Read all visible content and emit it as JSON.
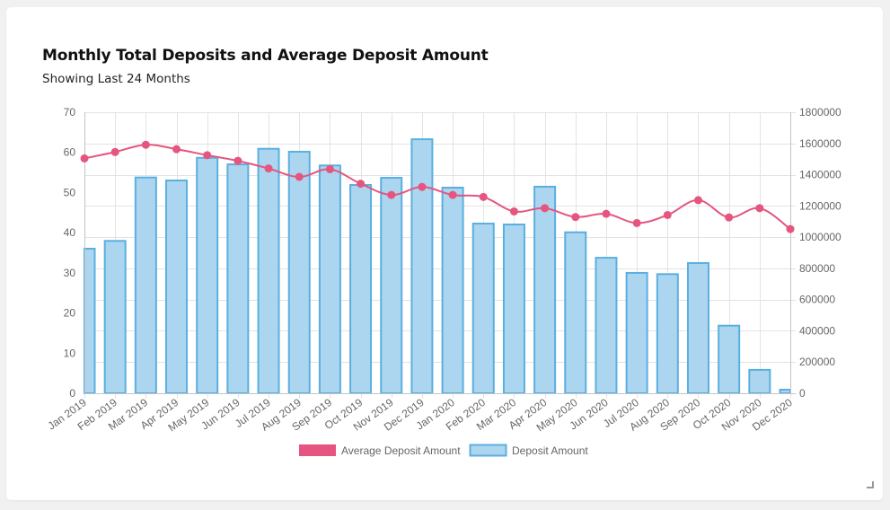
{
  "header": {
    "title": "Monthly Total Deposits and Average Deposit Amount",
    "subtitle": "Showing Last 24 Months"
  },
  "colors": {
    "line": "#e5557f",
    "bar_fill": "#acd6ef",
    "bar_border": "#5aafe0",
    "grid": "#e3e3e3",
    "axis": "#c4c4c4",
    "tick_text": "#666666"
  },
  "chart_data": {
    "type": "bar",
    "title": "Monthly Total Deposits and Average Deposit Amount",
    "subtitle": "Showing Last 24 Months",
    "categories": [
      "Jan 2019",
      "Feb 2019",
      "Mar 2019",
      "Apr 2019",
      "May 2019",
      "Jun 2019",
      "Jul 2019",
      "Aug 2019",
      "Sep 2019",
      "Oct 2019",
      "Nov 2019",
      "Dec 2019",
      "Jan 2020",
      "Feb 2020",
      "Mar 2020",
      "Apr 2020",
      "May 2020",
      "Jun 2020",
      "Jul 2020",
      "Aug 2020",
      "Sep 2020",
      "Oct 2020",
      "Nov 2020",
      "Dec 2020"
    ],
    "series": [
      {
        "name": "Average Deposit Amount",
        "type": "line",
        "axis": "left",
        "values": [
          58.5,
          60.1,
          61.9,
          60.8,
          59.3,
          57.9,
          56.0,
          53.9,
          55.8,
          52.2,
          49.4,
          51.4,
          49.4,
          48.9,
          45.3,
          46.1,
          43.9,
          44.7,
          42.4,
          44.4,
          48.1,
          43.8,
          46.1,
          40.9
        ]
      },
      {
        "name": "Deposit Amount",
        "type": "bar",
        "axis": "right",
        "values": [
          926000,
          976000,
          1382000,
          1363000,
          1508000,
          1466000,
          1566000,
          1547000,
          1459000,
          1334000,
          1380000,
          1627000,
          1317000,
          1087000,
          1081000,
          1323000,
          1031000,
          868000,
          771000,
          763000,
          834000,
          433000,
          150000,
          23000
        ]
      }
    ],
    "y_left": {
      "range": [
        0,
        70
      ],
      "ticks": [
        0,
        10,
        20,
        30,
        40,
        50,
        60,
        70
      ]
    },
    "y_right": {
      "range": [
        0,
        1800000
      ],
      "ticks": [
        0,
        200000,
        400000,
        600000,
        800000,
        1000000,
        1200000,
        1400000,
        1600000,
        1800000
      ]
    },
    "xlabel": "",
    "ylabel": "",
    "grid": true,
    "legend": {
      "position": "bottom",
      "entries": [
        "Average Deposit Amount",
        "Deposit Amount"
      ]
    }
  }
}
